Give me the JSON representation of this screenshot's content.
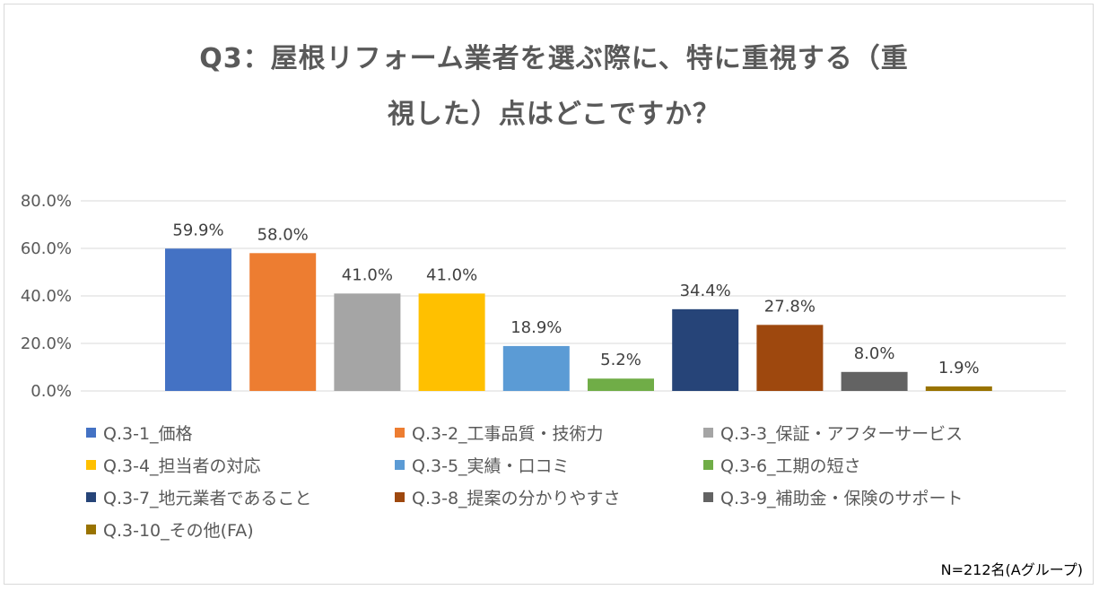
{
  "chart_data": {
    "type": "bar",
    "title_lines": [
      "Q3：屋根リフォーム業者を選ぶ際に、特に重視する（重",
      "視した）点はどこですか？"
    ],
    "categories": [
      "Q.3-1_価格",
      "Q.3-2_工事品質・技術力",
      "Q.3-3_保証・アフターサービス",
      "Q.3-4_担当者の対応",
      "Q.3-5_実績・口コミ",
      "Q.3-6_工期の短さ",
      "Q.3-7_地元業者であること",
      "Q.3-8_提案の分かりやすさ",
      "Q.3-9_補助金・保険のサポート",
      "Q.3-10_その他(FA)"
    ],
    "values": [
      59.9,
      58.0,
      41.0,
      41.0,
      18.9,
      5.2,
      34.4,
      27.8,
      8.0,
      1.9
    ],
    "value_labels": [
      "59.9%",
      "58.0%",
      "41.0%",
      "41.0%",
      "18.9%",
      "5.2%",
      "34.4%",
      "27.8%",
      "8.0%",
      "1.9%"
    ],
    "colors": [
      "#4472c4",
      "#ed7d31",
      "#a5a5a5",
      "#ffc000",
      "#5b9bd5",
      "#70ad47",
      "#264478",
      "#9e480e",
      "#636363",
      "#997300"
    ],
    "ylim": [
      0,
      80
    ],
    "yticks": [
      0,
      20,
      40,
      60,
      80
    ],
    "ytick_labels": [
      "0.0%",
      "20.0%",
      "40.0%",
      "60.0%",
      "80.0%"
    ],
    "grid": true,
    "legend_position": "bottom",
    "xlabel": "",
    "ylabel": ""
  },
  "note": "N=212名(Aグループ)"
}
